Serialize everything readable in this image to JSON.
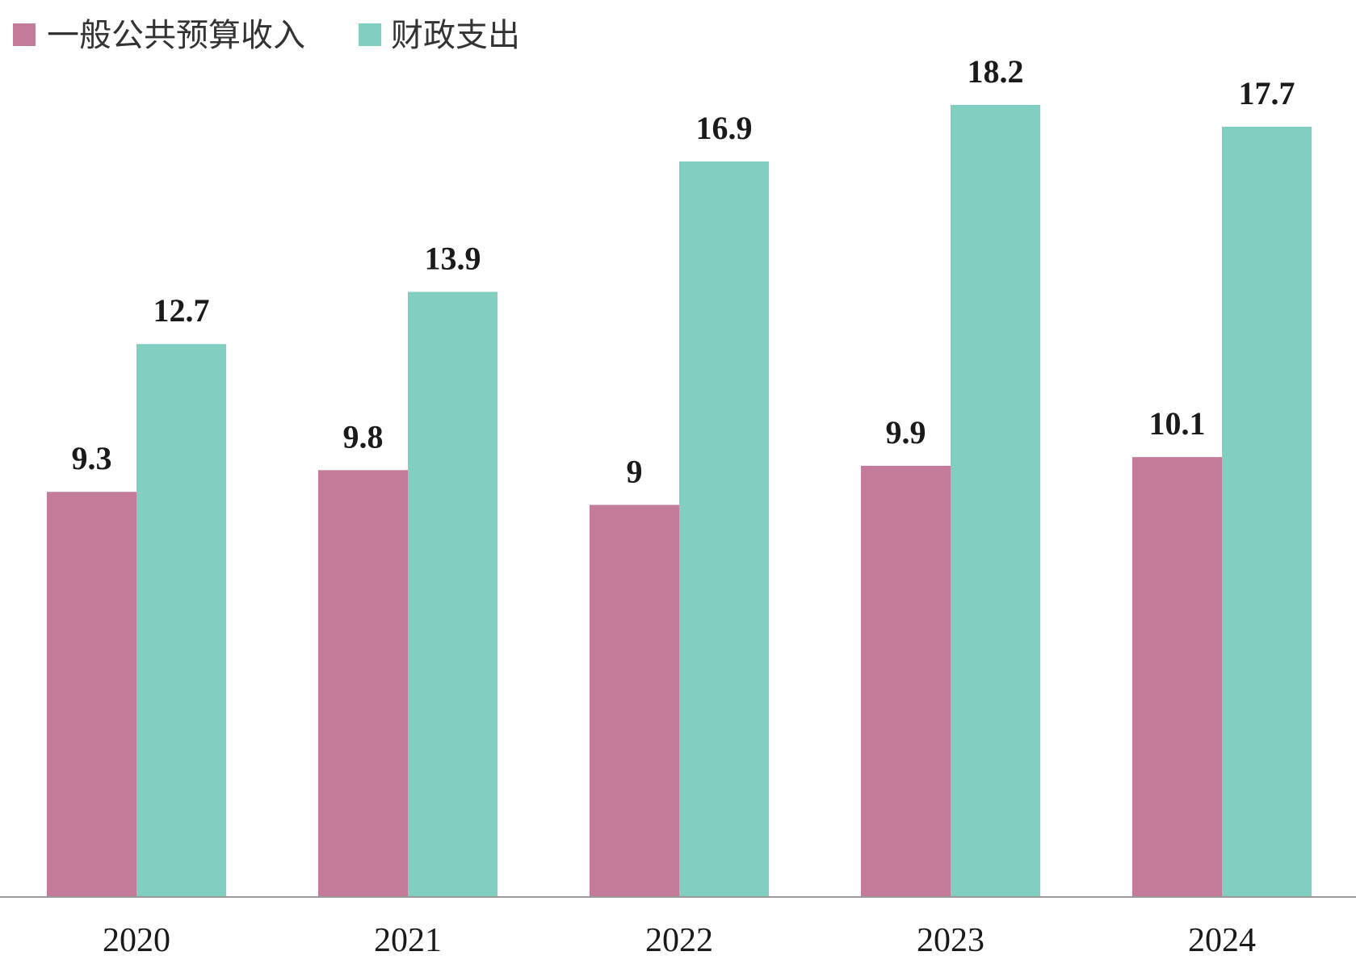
{
  "chart_data": {
    "type": "bar",
    "categories": [
      "2020",
      "2021",
      "2022",
      "2023",
      "2024"
    ],
    "series": [
      {
        "name": "一般公共预算收入",
        "color": "#c47a99",
        "values": [
          9.3,
          9.8,
          9,
          9.9,
          10.1
        ]
      },
      {
        "name": "财政支出",
        "color": "#80cfc0",
        "values": [
          12.7,
          13.9,
          16.9,
          18.2,
          17.7
        ]
      }
    ],
    "value_labels": [
      [
        "9.3",
        "9.8",
        "9",
        "9.9",
        "10.1"
      ],
      [
        "12.7",
        "13.9",
        "16.9",
        "18.2",
        "17.7"
      ]
    ],
    "title": "",
    "xlabel": "",
    "ylabel": "",
    "ylim": [
      0,
      19.5
    ],
    "grid": false,
    "legend_position": "top-left",
    "axis_color": "#9a9a9a"
  }
}
